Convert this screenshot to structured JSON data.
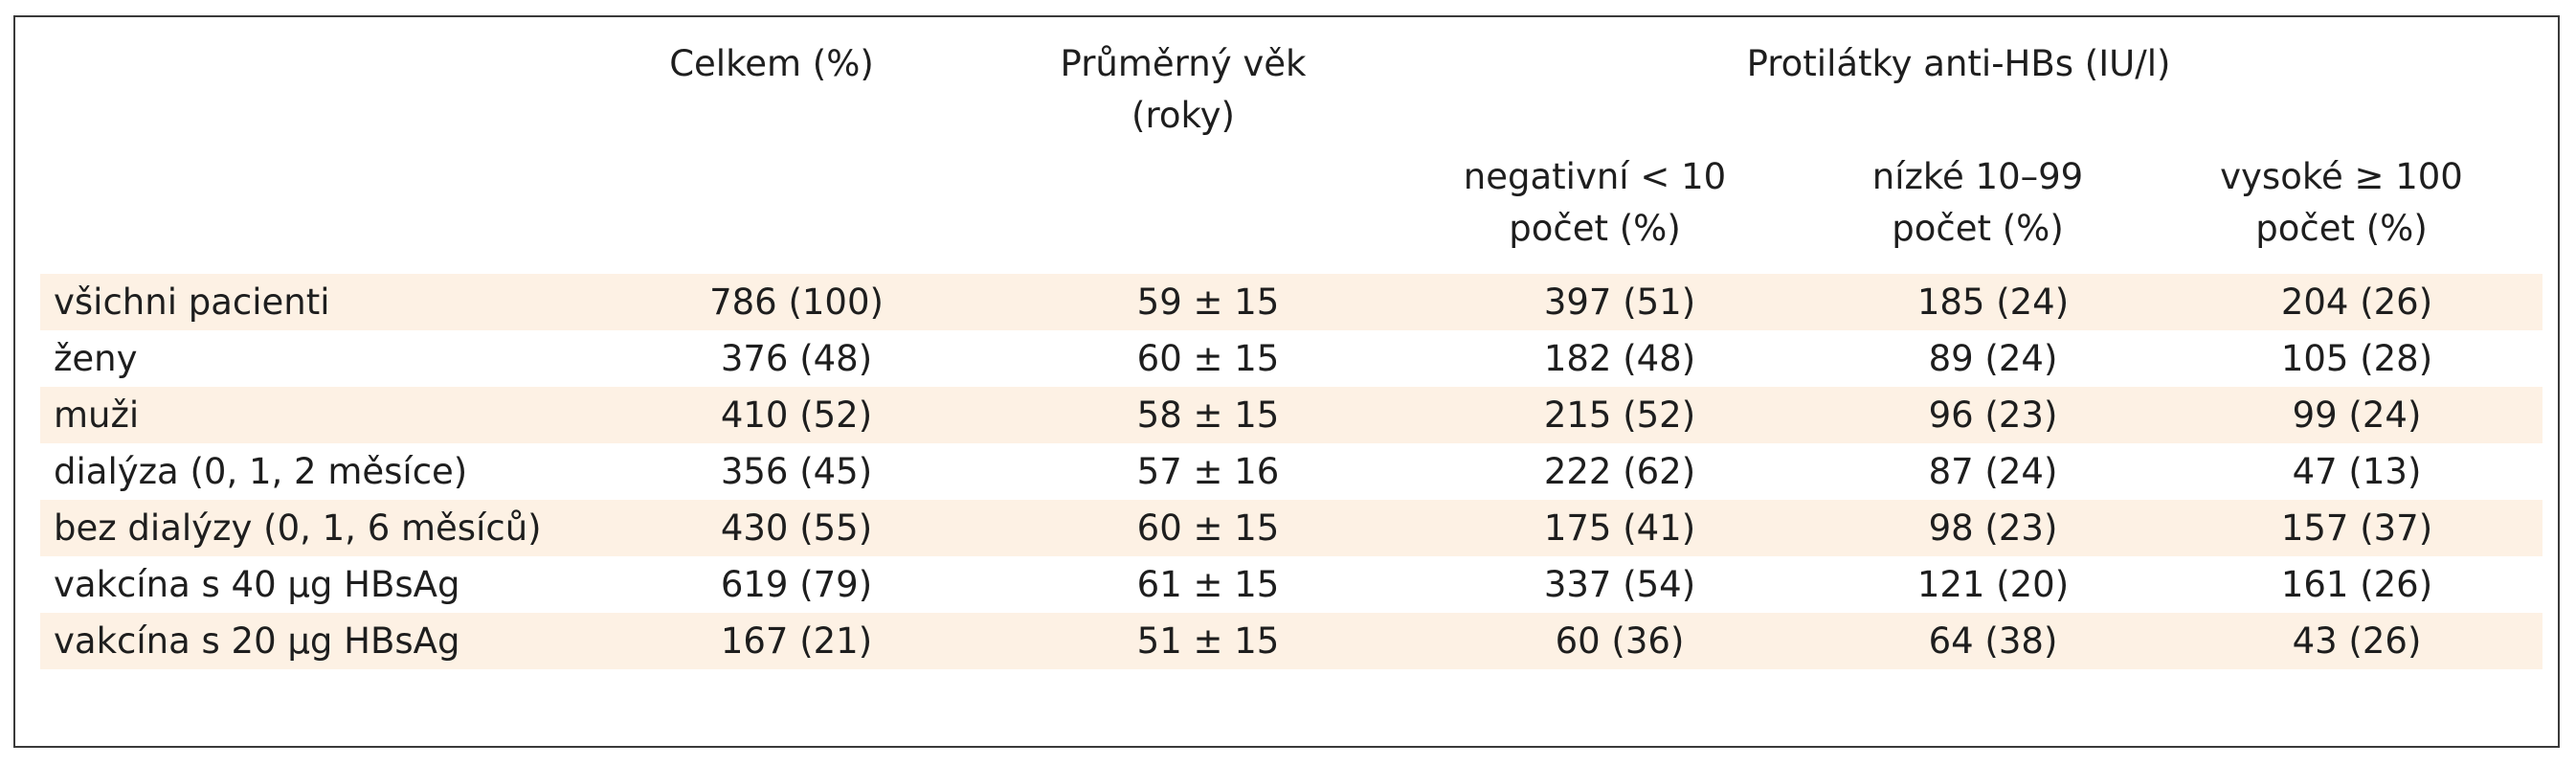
{
  "table": {
    "headers": {
      "total": "Celkem (%)",
      "age_line1": "Průměrný věk",
      "age_line2": "(roky)",
      "antibodies": "Protilátky anti-HBs (IU/l)",
      "negative_line1": "negativní < 10",
      "negative_line2": "počet (%)",
      "low_line1": "nízké 10–99",
      "low_line2": "počet (%)",
      "high_line1": "vysoké ≥ 100",
      "high_line2": "počet (%)"
    },
    "rows": [
      {
        "label": "všichni pacienti",
        "total": "786 (100)",
        "age": "59 ± 15",
        "negative": "397 (51)",
        "low": "185 (24)",
        "high": "204 (26)"
      },
      {
        "label": "ženy",
        "total": "376 (48)",
        "age": "60 ± 15",
        "negative": "182 (48)",
        "low": "89 (24)",
        "high": "105 (28)"
      },
      {
        "label": "muži",
        "total": "410 (52)",
        "age": "58 ± 15",
        "negative": "215 (52)",
        "low": "96 (23)",
        "high": "99 (24)"
      },
      {
        "label": "dialýza (0, 1, 2 měsíce)",
        "total": "356 (45)",
        "age": "57 ± 16",
        "negative": "222 (62)",
        "low": "87 (24)",
        "high": "47 (13)"
      },
      {
        "label": "bez dialýzy (0, 1, 6 měsíců)",
        "total": "430 (55)",
        "age": "60 ± 15",
        "negative": "175 (41)",
        "low": "98 (23)",
        "high": "157 (37)"
      },
      {
        "label": "vakcína s 40 µg HBsAg",
        "total": "619 (79)",
        "age": "61 ± 15",
        "negative": "337 (54)",
        "low": "121 (20)",
        "high": "161 (26)"
      },
      {
        "label": "vakcína s 20 µg HBsAg",
        "total": "167 (21)",
        "age": "51 ± 15",
        "negative": "60 (36)",
        "low": "64 (38)",
        "high": "43 (26)"
      }
    ],
    "row_shade_color": "#fdf1e4",
    "border_color": "#3a3a3a"
  }
}
